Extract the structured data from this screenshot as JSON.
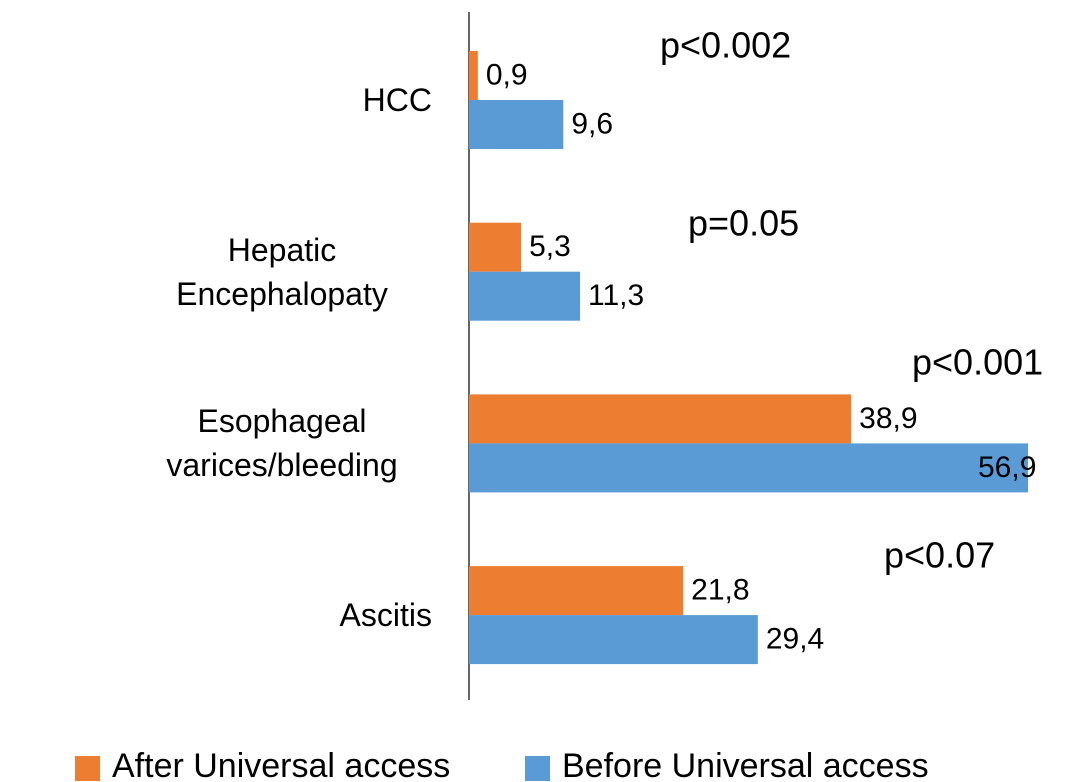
{
  "chart_data": {
    "type": "bar",
    "orientation": "horizontal",
    "categories": [
      "HCC",
      "Hepatic Encephalopaty",
      "Esophageal varices/bleeding",
      "Ascitis"
    ],
    "series": [
      {
        "name": "After Universal access",
        "color": "#ed7d31",
        "values": [
          0.9,
          5.3,
          38.9,
          21.8
        ],
        "value_labels": [
          "0,9",
          "5,3",
          "38,9",
          "21,8"
        ]
      },
      {
        "name": "Before Universal access",
        "color": "#5b9bd5",
        "values": [
          9.6,
          11.3,
          56.9,
          29.4
        ],
        "value_labels": [
          "9,6",
          "11,3",
          "56,9",
          "29,4"
        ]
      }
    ],
    "annotations": [
      "p<0.002",
      "p=0.05",
      "p<0.001",
      "p<0.07"
    ],
    "legend": "bottom"
  }
}
